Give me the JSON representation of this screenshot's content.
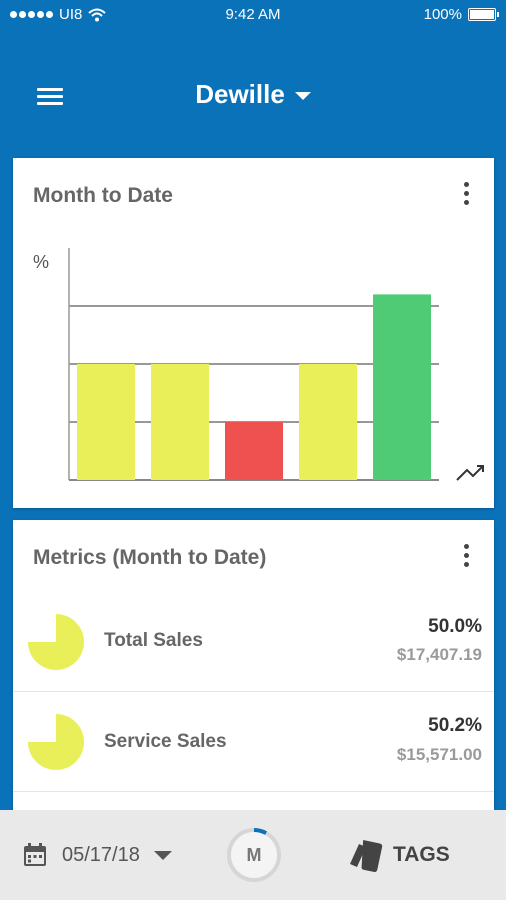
{
  "status_bar": {
    "carrier": "UI8",
    "time": "9:42 AM",
    "battery": "100%",
    "icons": [
      "signal-dots-icon",
      "wifi-icon",
      "battery-icon"
    ]
  },
  "header": {
    "title": "Dewille",
    "menu_icon": "hamburger-menu-icon",
    "dropdown_icon": "caret-down-icon"
  },
  "chart_card": {
    "title": "Month to Date",
    "menu_icon": "kebab-menu-icon",
    "trend_icon": "trending-up-icon"
  },
  "chart_data": {
    "type": "bar",
    "ylabel": "%",
    "ylim": [
      0,
      4
    ],
    "gridlines": [
      1,
      2,
      3
    ],
    "categories": [
      "",
      "",
      "",
      "",
      ""
    ],
    "values": [
      2,
      2,
      1,
      2,
      3.2
    ],
    "colors": [
      "#e8ef58",
      "#e8ef58",
      "#ef5150",
      "#e8ef58",
      "#4ecb74"
    ],
    "grid": true
  },
  "metrics_card": {
    "title": "Metrics (Month to Date)",
    "menu_icon": "kebab-menu-icon",
    "items": [
      {
        "name": "Total Sales",
        "percent": "50.0%",
        "amount": "$17,407.19",
        "pie_fraction": 0.75,
        "color": "#e8ef58"
      },
      {
        "name": "Service Sales",
        "percent": "50.2%",
        "amount": "$15,571.00",
        "pie_fraction": 0.75,
        "color": "#e8ef58"
      }
    ]
  },
  "bottom_bar": {
    "date": "05/17/18",
    "calendar_icon": "calendar-icon",
    "date_caret_icon": "caret-down-icon",
    "m_label": "M",
    "m_progress": 0.08,
    "tags_label": "TAGS",
    "tags_icon": "tags-icon"
  },
  "colors": {
    "primary": "#0a72b8",
    "yellow": "#e8ef58",
    "red": "#ef5150",
    "green": "#4ecb74"
  }
}
